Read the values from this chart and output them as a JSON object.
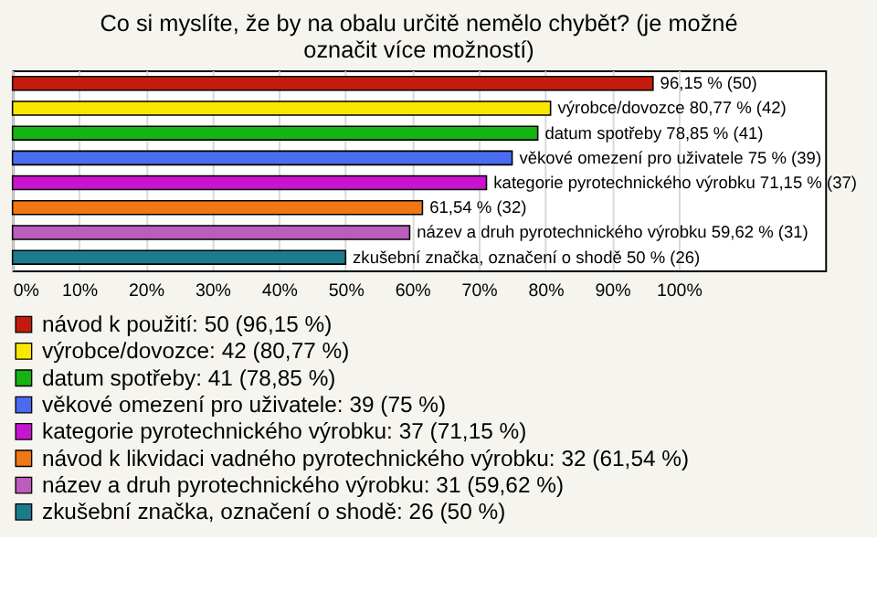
{
  "chart_data": {
    "type": "bar",
    "orientation": "horizontal",
    "title": "Co si myslíte, že by na obalu určitě nemělo chybět? (je možné označit více možností)",
    "categories": [
      null,
      null,
      null,
      null,
      null,
      null,
      null,
      null
    ],
    "series": [
      {
        "name": "návod k použití: 50 (96,15 %)",
        "color": "#c41a0c",
        "values": [
          96.15,
          null,
          null,
          null,
          null,
          null,
          null,
          null
        ],
        "value_labels": [
          "96,15 % (50)",
          null,
          null,
          null,
          null,
          null,
          null,
          null
        ]
      },
      {
        "name": "výrobce/dovozce: 42 (80,77 %)",
        "color": "#f8e800",
        "values": [
          null,
          80.77,
          null,
          null,
          null,
          null,
          null,
          null
        ],
        "value_labels": [
          null,
          "výrobce/dovozce 80,77 % (42)",
          null,
          null,
          null,
          null,
          null,
          null
        ]
      },
      {
        "name": "datum spotřeby: 41 (78,85 %)",
        "color": "#14b414",
        "values": [
          null,
          null,
          78.85,
          null,
          null,
          null,
          null,
          null
        ],
        "value_labels": [
          null,
          null,
          "datum spotřeby 78,85 % (41)",
          null,
          null,
          null,
          null,
          null
        ]
      },
      {
        "name": "věkové omezení pro uživatele: 39 (75 %)",
        "color": "#4a6cf0",
        "values": [
          null,
          null,
          null,
          75,
          null,
          null,
          null,
          null
        ],
        "value_labels": [
          null,
          null,
          null,
          "věkové omezení pro uživatele 75 % (39)",
          null,
          null,
          null,
          null
        ]
      },
      {
        "name": "kategorie pyrotechnického výrobku: 37 (71,15 %)",
        "color": "#c814d0",
        "values": [
          null,
          null,
          null,
          null,
          71.15,
          null,
          null,
          null
        ],
        "value_labels": [
          null,
          null,
          null,
          null,
          "kategorie pyrotechnického výrobku 71,15 % (37)",
          null,
          null,
          null
        ]
      },
      {
        "name": "návod k likvidaci vadného pyrotechnického výrobku: 32 (61,54 %)",
        "color": "#f07814",
        "values": [
          null,
          null,
          null,
          null,
          null,
          61.54,
          null,
          null
        ],
        "value_labels": [
          null,
          null,
          null,
          null,
          null,
          "61,54 % (32)",
          null,
          null
        ]
      },
      {
        "name": "název a druh pyrotechnického výrobku: 31 (59,62 %)",
        "color": "#bc5cbc",
        "values": [
          null,
          null,
          null,
          null,
          null,
          null,
          59.62,
          null
        ],
        "value_labels": [
          null,
          null,
          null,
          null,
          null,
          null,
          "název a druh pyrotechnického výrobku 59,62 % (31)",
          null
        ]
      },
      {
        "name": "zkušební značka, označení o shodě: 26 (50 %)",
        "color": "#1c7c8c",
        "values": [
          null,
          null,
          null,
          null,
          null,
          null,
          null,
          50
        ],
        "value_labels": [
          null,
          null,
          null,
          null,
          null,
          null,
          null,
          "zkušební značka, označení o shodě 50 % (26)"
        ]
      }
    ],
    "xlim": [
      0,
      122
    ],
    "xticks": [
      {
        "value": 0,
        "label": "0%"
      },
      {
        "value": 10,
        "label": "10%"
      },
      {
        "value": 20,
        "label": "20%"
      },
      {
        "value": 30,
        "label": "30%"
      },
      {
        "value": 40,
        "label": "40%"
      },
      {
        "value": 50,
        "label": "50%"
      },
      {
        "value": 60,
        "label": "60%"
      },
      {
        "value": 70,
        "label": "70%"
      },
      {
        "value": 80,
        "label": "80%"
      },
      {
        "value": 90,
        "label": "90%"
      },
      {
        "value": 100,
        "label": "100%"
      }
    ],
    "grid": "x",
    "legend": "bottom",
    "tick_labels": "x"
  }
}
